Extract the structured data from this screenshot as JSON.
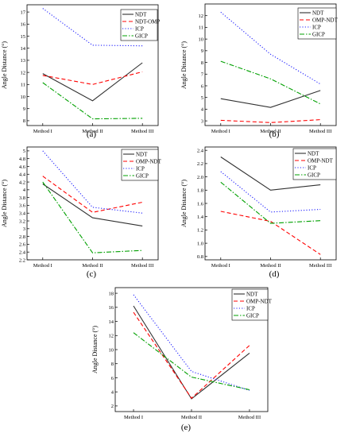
{
  "chart_data": [
    {
      "panel_label": "(a)",
      "type": "line",
      "categories": [
        "Method  I",
        "Method  II",
        "Method III"
      ],
      "ylabel": "Angle Distance (°)",
      "ylim": [
        7.6,
        17.6
      ],
      "yticks": [
        8,
        9,
        10,
        11,
        12,
        13,
        14,
        15,
        16,
        17
      ],
      "legend_placement": "top-right",
      "series": [
        {
          "name": "NDT",
          "color": "#303030",
          "dash": "solid",
          "values": [
            11.9,
            9.65,
            12.8
          ]
        },
        {
          "name": "NDT-OMP",
          "color": "#ff0000",
          "dash": "dash",
          "values": [
            11.75,
            11.0,
            12.05
          ]
        },
        {
          "name": "ICP",
          "color": "#2020ff",
          "dash": "dot",
          "values": [
            17.3,
            14.25,
            14.2
          ]
        },
        {
          "name": "GICP",
          "color": "#00a000",
          "dash": "dashdot",
          "values": [
            11.15,
            8.15,
            8.2
          ]
        }
      ]
    },
    {
      "panel_label": "(b)",
      "type": "line",
      "categories": [
        "Method  I",
        "Method  II",
        "Method III"
      ],
      "ylabel": "Angle Distance (°)",
      "ylim": [
        2.6,
        13.0
      ],
      "yticks": [
        3,
        4,
        5,
        6,
        7,
        8,
        9,
        10,
        11,
        12
      ],
      "legend_placement": "top-right",
      "series": [
        {
          "name": "NDT",
          "color": "#303030",
          "dash": "solid",
          "values": [
            4.9,
            4.15,
            5.6
          ]
        },
        {
          "name": "OMP-NDT",
          "color": "#ff0000",
          "dash": "dash",
          "values": [
            3.05,
            2.85,
            3.1
          ]
        },
        {
          "name": "ICP",
          "color": "#2020ff",
          "dash": "dot",
          "values": [
            12.3,
            8.7,
            6.15
          ]
        },
        {
          "name": "GICP",
          "color": "#00a000",
          "dash": "dashdot",
          "values": [
            8.1,
            6.6,
            4.45
          ]
        }
      ]
    },
    {
      "panel_label": "(c)",
      "type": "line",
      "categories": [
        "Method  I",
        "Method  II",
        "Method III"
      ],
      "ylabel": "Angle Distance (°)",
      "ylim": [
        2.2,
        5.1
      ],
      "yticks": [
        2.2,
        2.4,
        2.6,
        2.8,
        3.0,
        3.2,
        3.4,
        3.6,
        3.8,
        4.0,
        4.2,
        4.4,
        4.6,
        4.8,
        5.0
      ],
      "legend_placement": "top-right",
      "series": [
        {
          "name": "NDT",
          "color": "#303030",
          "dash": "solid",
          "values": [
            4.15,
            3.28,
            3.07
          ]
        },
        {
          "name": "OMP-NDT",
          "color": "#ff0000",
          "dash": "dash",
          "values": [
            4.35,
            3.42,
            3.68
          ]
        },
        {
          "name": "ICP",
          "color": "#2020ff",
          "dash": "dot",
          "values": [
            5.0,
            3.55,
            3.4
          ]
        },
        {
          "name": "GICP",
          "color": "#00a000",
          "dash": "dashdot",
          "values": [
            4.2,
            2.38,
            2.44
          ]
        }
      ]
    },
    {
      "panel_label": "(d)",
      "type": "line",
      "categories": [
        "Method  I",
        "Method  II",
        "Method III"
      ],
      "ylabel": "Angle Distance (°)",
      "ylim": [
        0.75,
        2.45
      ],
      "yticks": [
        0.8,
        1.0,
        1.2,
        1.4,
        1.6,
        1.8,
        2.0,
        2.2,
        2.4
      ],
      "legend_placement": "top-right",
      "series": [
        {
          "name": "NDT",
          "color": "#303030",
          "dash": "solid",
          "values": [
            2.3,
            1.8,
            1.88
          ]
        },
        {
          "name": "OMP-NDT",
          "color": "#ff0000",
          "dash": "dash",
          "values": [
            1.48,
            1.33,
            0.83
          ]
        },
        {
          "name": "ICP",
          "color": "#2020ff",
          "dash": "dot",
          "values": [
            2.08,
            1.47,
            1.51
          ]
        },
        {
          "name": "GICP",
          "color": "#00a000",
          "dash": "dashdot",
          "values": [
            1.92,
            1.3,
            1.34
          ]
        }
      ]
    },
    {
      "panel_label": "(e)",
      "type": "line",
      "categories": [
        "Method  I",
        "Method  II",
        "Method III"
      ],
      "ylabel": "Angle Distance (°)",
      "ylim": [
        1.2,
        18.8
      ],
      "yticks": [
        2,
        4,
        6,
        8,
        10,
        12,
        14,
        16,
        18
      ],
      "legend_placement": "top-right",
      "series": [
        {
          "name": "NDT",
          "color": "#303030",
          "dash": "solid",
          "values": [
            16.2,
            3.0,
            9.5
          ]
        },
        {
          "name": "OMP-NDT",
          "color": "#ff0000",
          "dash": "dash",
          "values": [
            15.3,
            3.1,
            10.6
          ]
        },
        {
          "name": "ICP",
          "color": "#2020ff",
          "dash": "dot",
          "values": [
            17.8,
            6.9,
            4.2
          ]
        },
        {
          "name": "GICP",
          "color": "#00a000",
          "dash": "dashdot",
          "values": [
            12.4,
            6.1,
            4.3
          ]
        }
      ]
    }
  ]
}
